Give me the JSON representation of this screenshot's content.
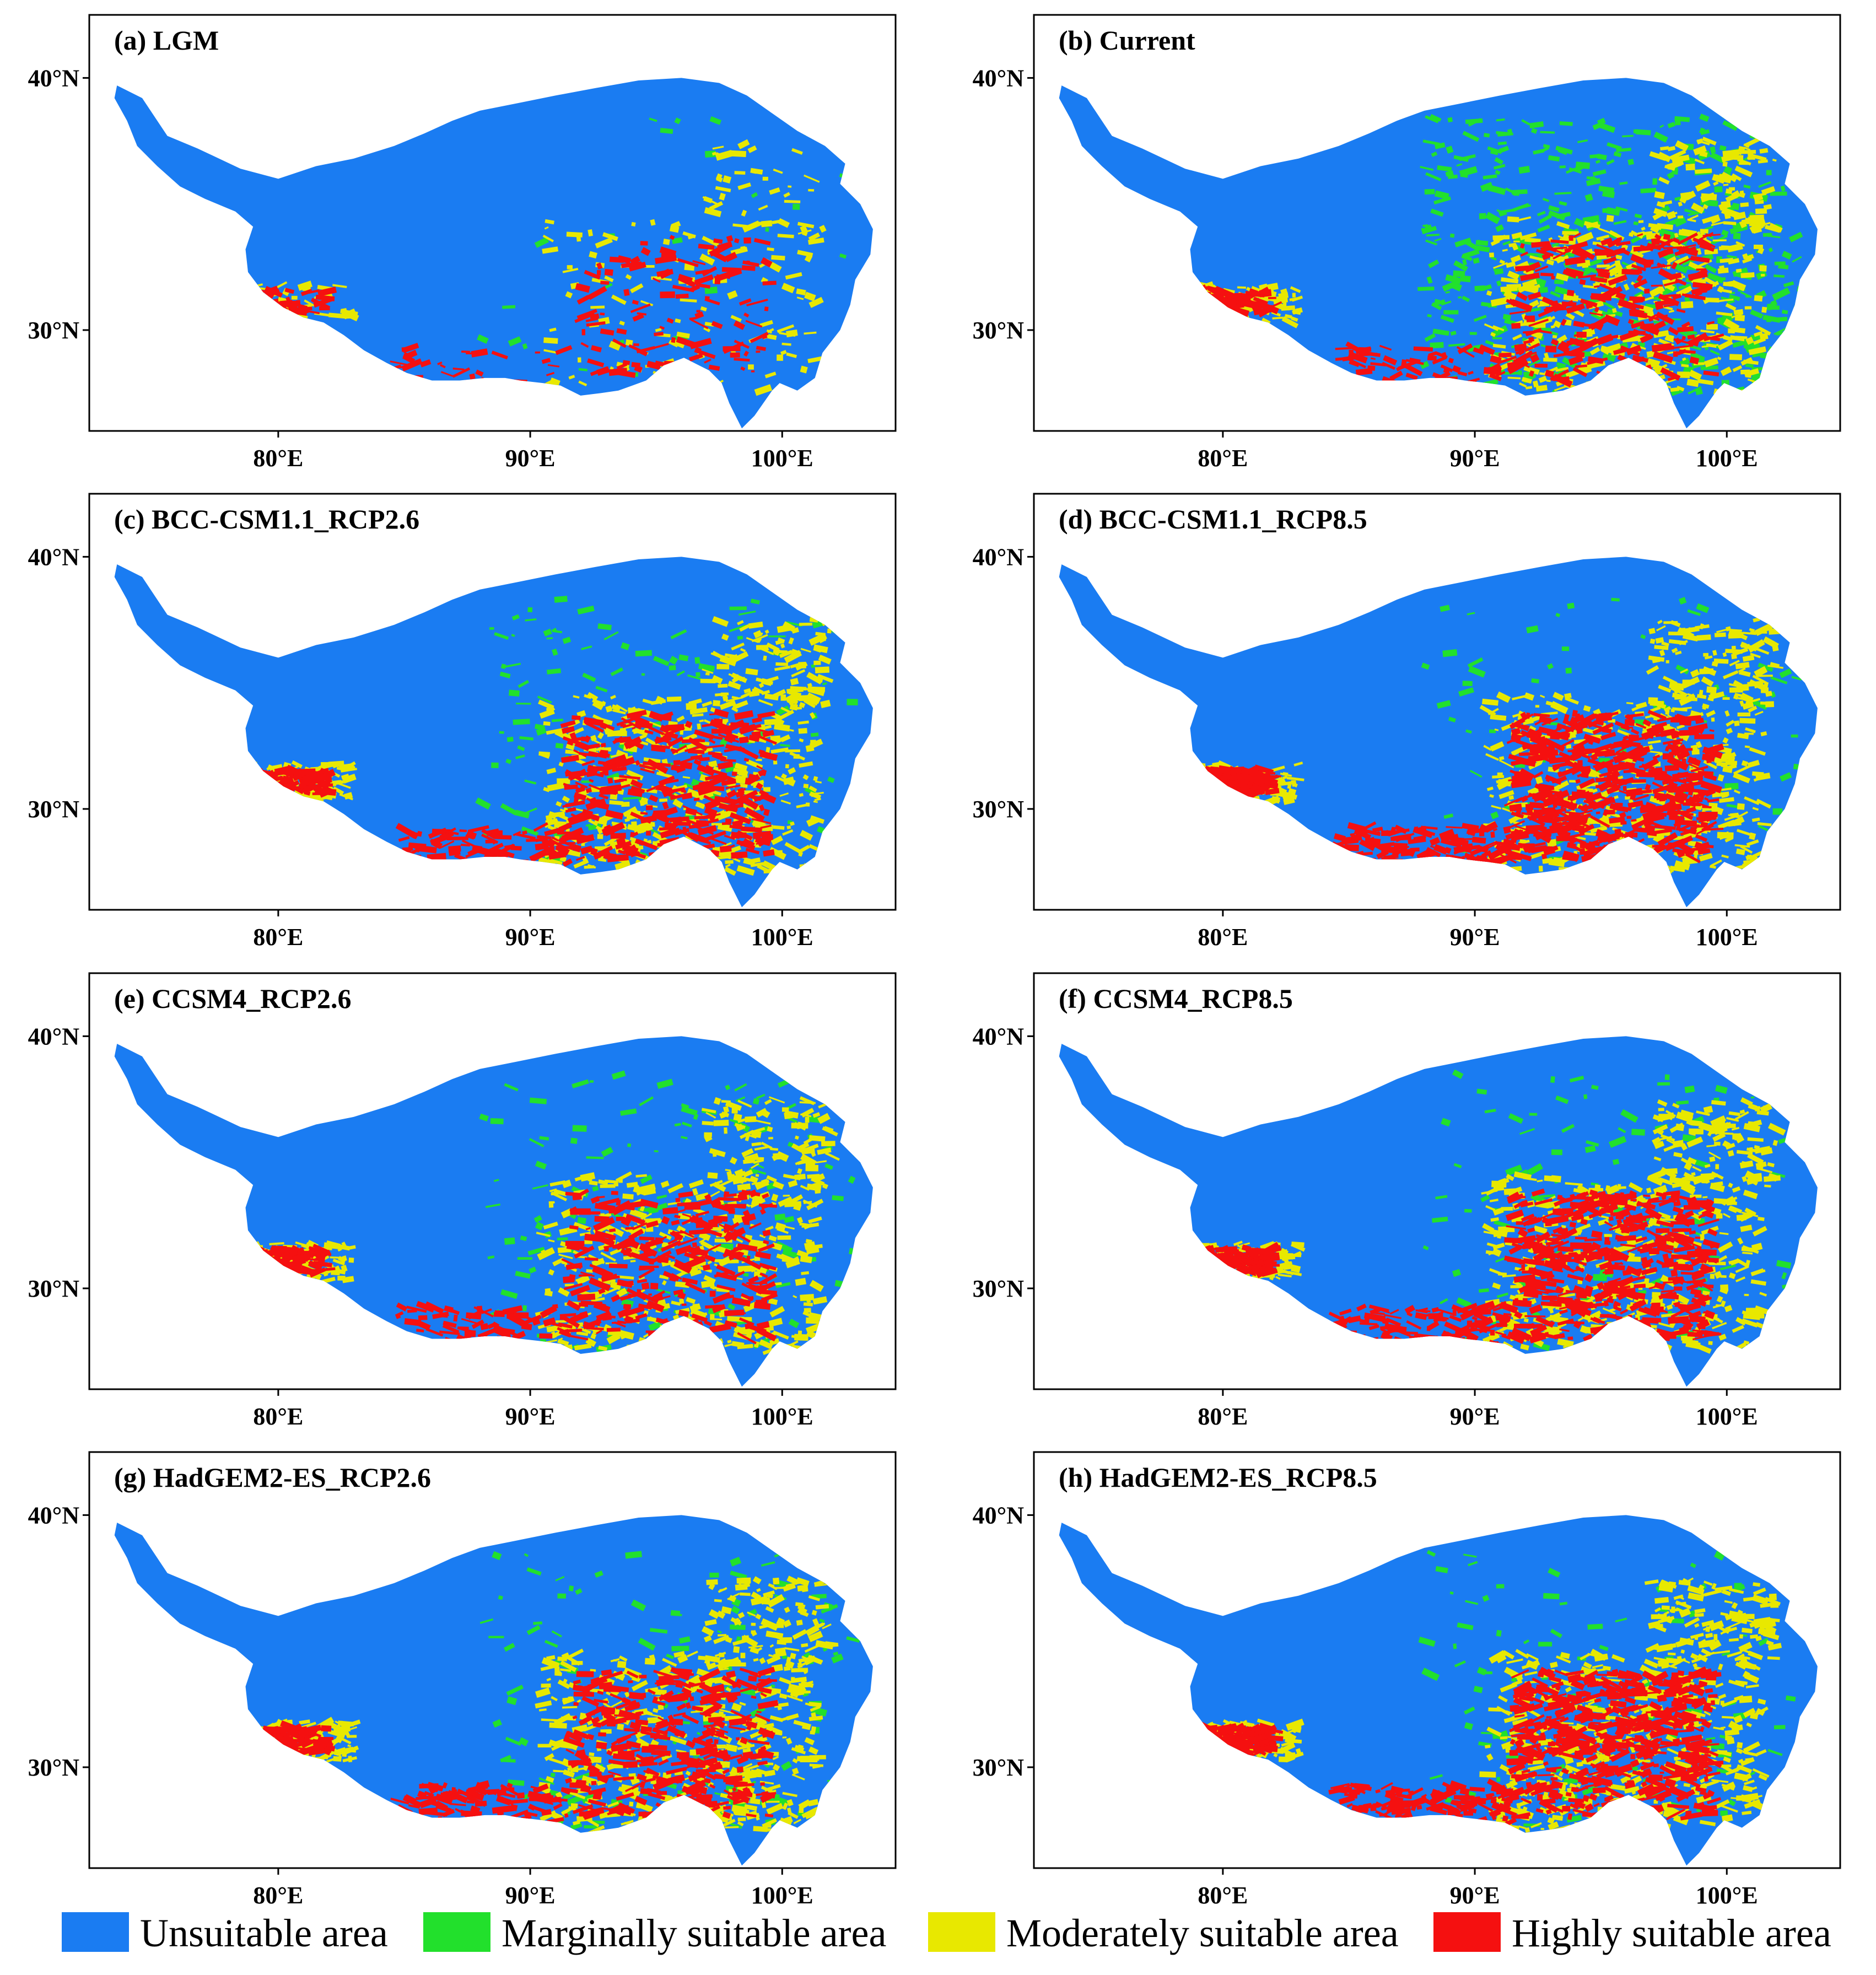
{
  "figure": {
    "panels": [
      {
        "id": "a",
        "title": "(a) LGM",
        "suitability": {
          "marginal": 0.05,
          "moderate": 0.25,
          "high": 0.25
        }
      },
      {
        "id": "b",
        "title": "(b) Current",
        "suitability": {
          "marginal": 0.9,
          "moderate": 0.7,
          "high": 0.5
        }
      },
      {
        "id": "c",
        "title": "(c) BCC-CSM1.1_RCP2.6",
        "suitability": {
          "marginal": 0.25,
          "moderate": 0.8,
          "high": 0.7
        }
      },
      {
        "id": "d",
        "title": "(d) BCC-CSM1.1_RCP8.5",
        "suitability": {
          "marginal": 0.15,
          "moderate": 0.8,
          "high": 1.0
        }
      },
      {
        "id": "e",
        "title": "(e) CCSM4_RCP2.6",
        "suitability": {
          "marginal": 0.25,
          "moderate": 0.75,
          "high": 0.55
        }
      },
      {
        "id": "f",
        "title": "(f) CCSM4_RCP8.5",
        "suitability": {
          "marginal": 0.2,
          "moderate": 0.8,
          "high": 0.9
        }
      },
      {
        "id": "g",
        "title": "(g) HadGEM2-ES_RCP2.6",
        "suitability": {
          "marginal": 0.25,
          "moderate": 0.85,
          "high": 0.7
        }
      },
      {
        "id": "h",
        "title": "(h) HadGEM2-ES_RCP8.5",
        "suitability": {
          "marginal": 0.2,
          "moderate": 0.85,
          "high": 1.0
        }
      }
    ],
    "axes": {
      "lon_ticks": [
        {
          "value": 80,
          "label": "80°E"
        },
        {
          "value": 90,
          "label": "90°E"
        },
        {
          "value": 100,
          "label": "100°E"
        }
      ],
      "lat_ticks": [
        {
          "value": 40,
          "label": "40°N"
        },
        {
          "value": 30,
          "label": "30°N"
        }
      ],
      "lon_range": [
        72.5,
        104.5
      ],
      "lat_range": [
        26,
        42.5
      ]
    },
    "legend": [
      {
        "key": "unsuitable",
        "label": "Unsuitable area",
        "color": "#1a7cf2"
      },
      {
        "key": "marginal",
        "label": "Marginally suitable area",
        "color": "#22e02c"
      },
      {
        "key": "moderate",
        "label": "Moderately suitable area",
        "color": "#e8e800"
      },
      {
        "key": "high",
        "label": "Highly suitable area",
        "color": "#f51010"
      }
    ]
  }
}
